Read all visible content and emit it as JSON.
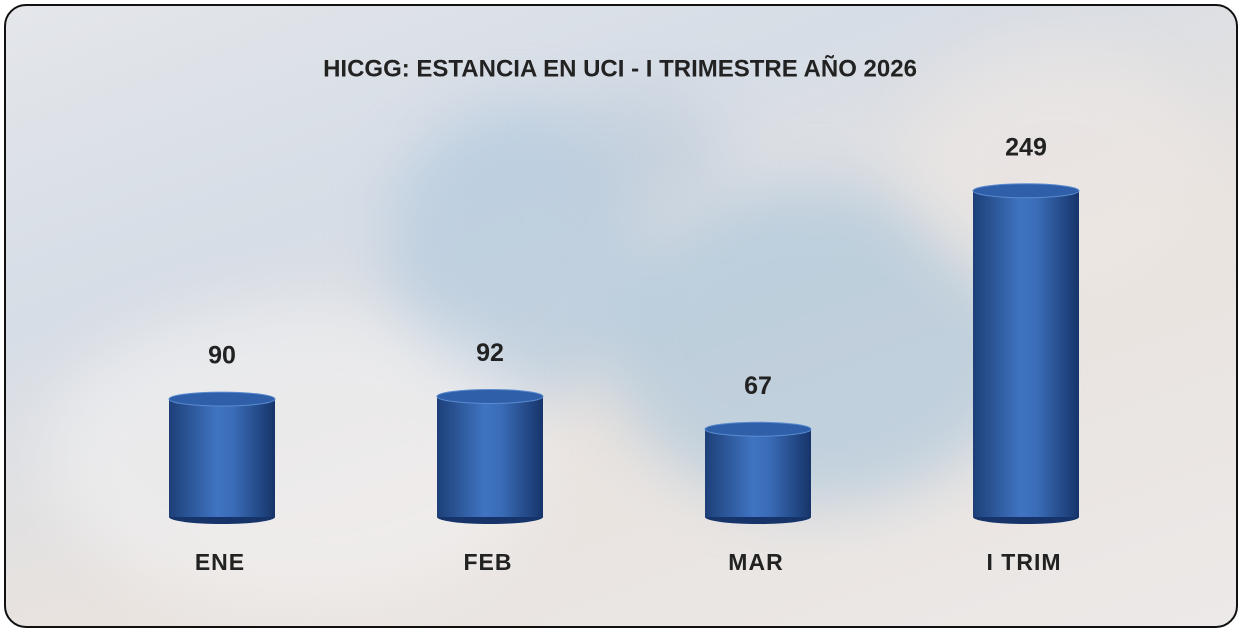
{
  "chart_data": {
    "type": "bar",
    "title": "HICGG: ESTANCIA EN UCI - I TRIMESTRE AÑO 2026",
    "categories": [
      "ENE",
      "FEB",
      "MAR",
      "I TRIM"
    ],
    "values": [
      90,
      92,
      67,
      249
    ],
    "color": "#2f5fa8"
  }
}
